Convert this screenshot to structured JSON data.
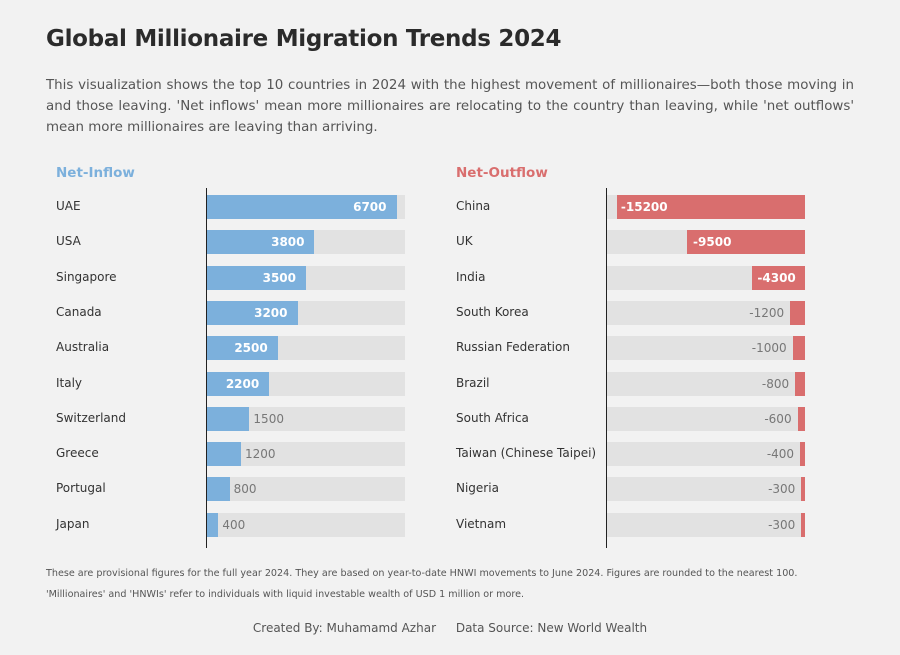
{
  "title": "Global Millionaire Migration Trends 2024",
  "subtitle": "This visualization shows the top 10 countries in 2024 with the highest movement of millionaires—both those moving in and those leaving. 'Net inflows' mean more millionaires are relocating to the country than leaving, while 'net outflows' mean more millionaires are leaving than arriving.",
  "chart_data": [
    {
      "type": "bar",
      "orientation": "horizontal",
      "title": "Net-Inflow",
      "color": "#7cb0dc",
      "track_color": "#e2e2e2",
      "xlim": [
        0,
        7000
      ],
      "categories": [
        "UAE",
        "USA",
        "Singapore",
        "Canada",
        "Australia",
        "Italy",
        "Switzerland",
        "Greece",
        "Portugal",
        "Japan"
      ],
      "values": [
        6700,
        3800,
        3500,
        3200,
        2500,
        2200,
        1500,
        1200,
        800,
        400
      ]
    },
    {
      "type": "bar",
      "orientation": "horizontal",
      "title": "Net-Outflow",
      "color": "#d96e6e",
      "track_color": "#e2e2e2",
      "xlim": [
        -16000,
        0
      ],
      "categories": [
        "China",
        "UK",
        "India",
        "South Korea",
        "Russian Federation",
        "Brazil",
        "South Africa",
        "Taiwan (Chinese Taipei)",
        "Nigeria",
        "Vietnam"
      ],
      "values": [
        -15200,
        -9500,
        -4300,
        -1200,
        -1000,
        -800,
        -600,
        -400,
        -300,
        -300
      ]
    }
  ],
  "notes": [
    "These are provisional figures for the full year 2024. They are based on year-to-date HNWI movements to June 2024. Figures are rounded to the nearest 100.",
    "'Millionaires' and 'HNWIs' refer to individuals with liquid investable wealth of USD 1 million or more."
  ],
  "footer": {
    "credit": "Created By: Muhamamd Azhar",
    "source": "Data Source: New World Wealth"
  }
}
